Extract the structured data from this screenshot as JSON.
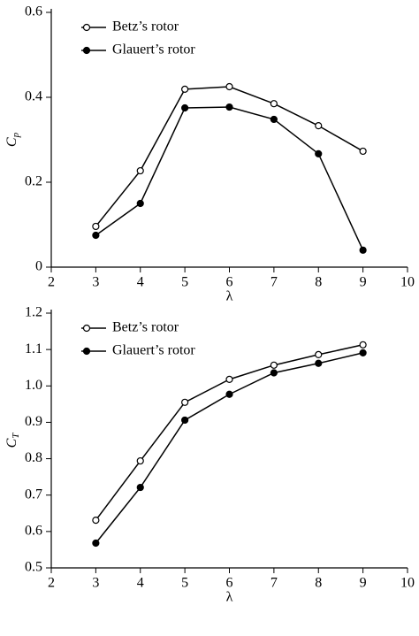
{
  "chart_data": [
    {
      "type": "line",
      "xlabel": "λ",
      "ylabel": "C",
      "ylabel_sub": "p",
      "x": [
        3,
        4,
        5,
        6,
        7,
        8,
        9
      ],
      "series": [
        {
          "name": "Betz’s rotor",
          "color": "#000000",
          "marker": "open",
          "values": [
            0.096,
            0.227,
            0.419,
            0.425,
            0.385,
            0.333,
            0.273
          ]
        },
        {
          "name": "Glauert’s rotor",
          "color": "#000000",
          "marker": "filled",
          "values": [
            0.075,
            0.15,
            0.375,
            0.377,
            0.348,
            0.267,
            0.04
          ]
        }
      ],
      "xlim": [
        2,
        10
      ],
      "xticks": [
        2,
        3,
        4,
        5,
        6,
        7,
        8,
        9,
        10
      ],
      "ylim": [
        0,
        0.6
      ],
      "yticks": [
        0,
        0.2,
        0.4,
        0.6
      ],
      "legend": "upper left"
    },
    {
      "type": "line",
      "xlabel": "λ",
      "ylabel": "C",
      "ylabel_sub": "T",
      "x": [
        3,
        4,
        5,
        6,
        7,
        8,
        9
      ],
      "series": [
        {
          "name": "Betz’s rotor",
          "color": "#000000",
          "marker": "open",
          "values": [
            0.631,
            0.794,
            0.955,
            1.018,
            1.057,
            1.086,
            1.113
          ]
        },
        {
          "name": "Glauert’s rotor",
          "color": "#000000",
          "marker": "filled",
          "values": [
            0.568,
            0.721,
            0.906,
            0.977,
            1.036,
            1.062,
            1.091
          ]
        }
      ],
      "xlim": [
        2,
        10
      ],
      "xticks": [
        2,
        3,
        4,
        5,
        6,
        7,
        8,
        9,
        10
      ],
      "ylim": [
        0.5,
        1.2
      ],
      "yticks": [
        0.5,
        0.6,
        0.7,
        0.8,
        0.9,
        {
          "value": 1,
          "label": "1.0"
        },
        1.1,
        1.2
      ],
      "legend": "upper left"
    }
  ]
}
